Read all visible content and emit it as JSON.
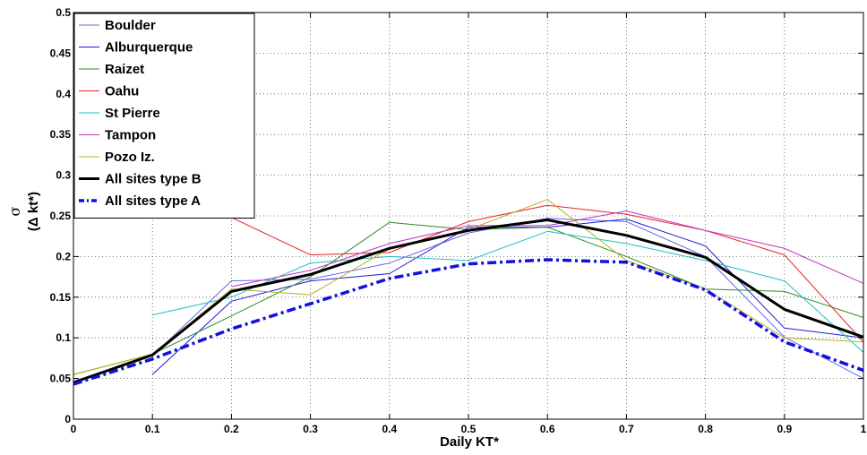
{
  "chart_data": {
    "type": "line",
    "title": "",
    "xlabel": "Daily KT*",
    "ylabel_symbol": "σ",
    "ylabel": "(Δ kt*)",
    "xlim": [
      0,
      1
    ],
    "ylim": [
      0,
      0.5
    ],
    "grid": true,
    "legend_position": "top-left",
    "x_ticks": [
      "0",
      "0.1",
      "0.2",
      "0.3",
      "0.4",
      "0.5",
      "0.6",
      "0.7",
      "0.8",
      "0.9",
      "1"
    ],
    "y_ticks": [
      "0",
      "0.05",
      "0.1",
      "0.15",
      "0.2",
      "0.25",
      "0.3",
      "0.35",
      "0.4",
      "0.45",
      "0.5"
    ],
    "x": [
      0,
      0.1,
      0.2,
      0.3,
      0.4,
      0.5,
      0.6,
      0.7,
      0.8,
      0.9,
      1.0
    ],
    "series": [
      {
        "name": "Boulder",
        "color": "#6666ee",
        "style": "thin",
        "values": [
          0.045,
          0.078,
          0.17,
          0.172,
          0.192,
          0.229,
          0.247,
          0.243,
          0.2,
          0.101,
          0.05
        ]
      },
      {
        "name": "Alburquerque",
        "color": "#1a1ad8",
        "style": "thin",
        "values": [
          null,
          0.055,
          0.145,
          0.17,
          0.179,
          0.236,
          0.236,
          0.246,
          0.213,
          0.112,
          0.1
        ]
      },
      {
        "name": "Raizet",
        "color": "#2e8b2e",
        "style": "thin",
        "values": [
          0.055,
          0.08,
          0.127,
          0.175,
          0.242,
          0.233,
          0.236,
          0.2,
          0.16,
          0.157,
          0.125
        ]
      },
      {
        "name": "Oahu",
        "color": "#e82020",
        "style": "thin",
        "values": [
          null,
          null,
          0.248,
          0.202,
          0.205,
          0.243,
          0.263,
          0.252,
          0.232,
          0.202,
          0.095
        ]
      },
      {
        "name": "St Pierre",
        "color": "#20c0c0",
        "style": "thin",
        "values": [
          null,
          0.128,
          0.15,
          0.192,
          0.2,
          0.195,
          0.231,
          0.216,
          0.195,
          0.17,
          0.082
        ]
      },
      {
        "name": "Tampon",
        "color": "#c030c0",
        "style": "thin",
        "values": [
          null,
          null,
          0.163,
          0.183,
          0.216,
          0.238,
          0.238,
          0.256,
          0.232,
          0.21,
          0.167
        ]
      },
      {
        "name": "Pozo Iz.",
        "color": "#b8b020",
        "style": "thin",
        "values": [
          0.055,
          0.08,
          0.16,
          0.153,
          0.21,
          0.233,
          0.27,
          0.195,
          0.16,
          0.1,
          0.095
        ]
      },
      {
        "name": "All sites type B",
        "color": "#000000",
        "style": "thick",
        "values": [
          0.045,
          0.079,
          0.157,
          0.178,
          0.21,
          0.232,
          0.245,
          0.226,
          0.199,
          0.135,
          0.101
        ]
      },
      {
        "name": "All sites type A",
        "color": "#1010e0",
        "style": "dashdot",
        "values": [
          0.043,
          0.074,
          0.111,
          0.142,
          0.173,
          0.191,
          0.196,
          0.193,
          0.159,
          0.095,
          0.06
        ]
      }
    ]
  }
}
